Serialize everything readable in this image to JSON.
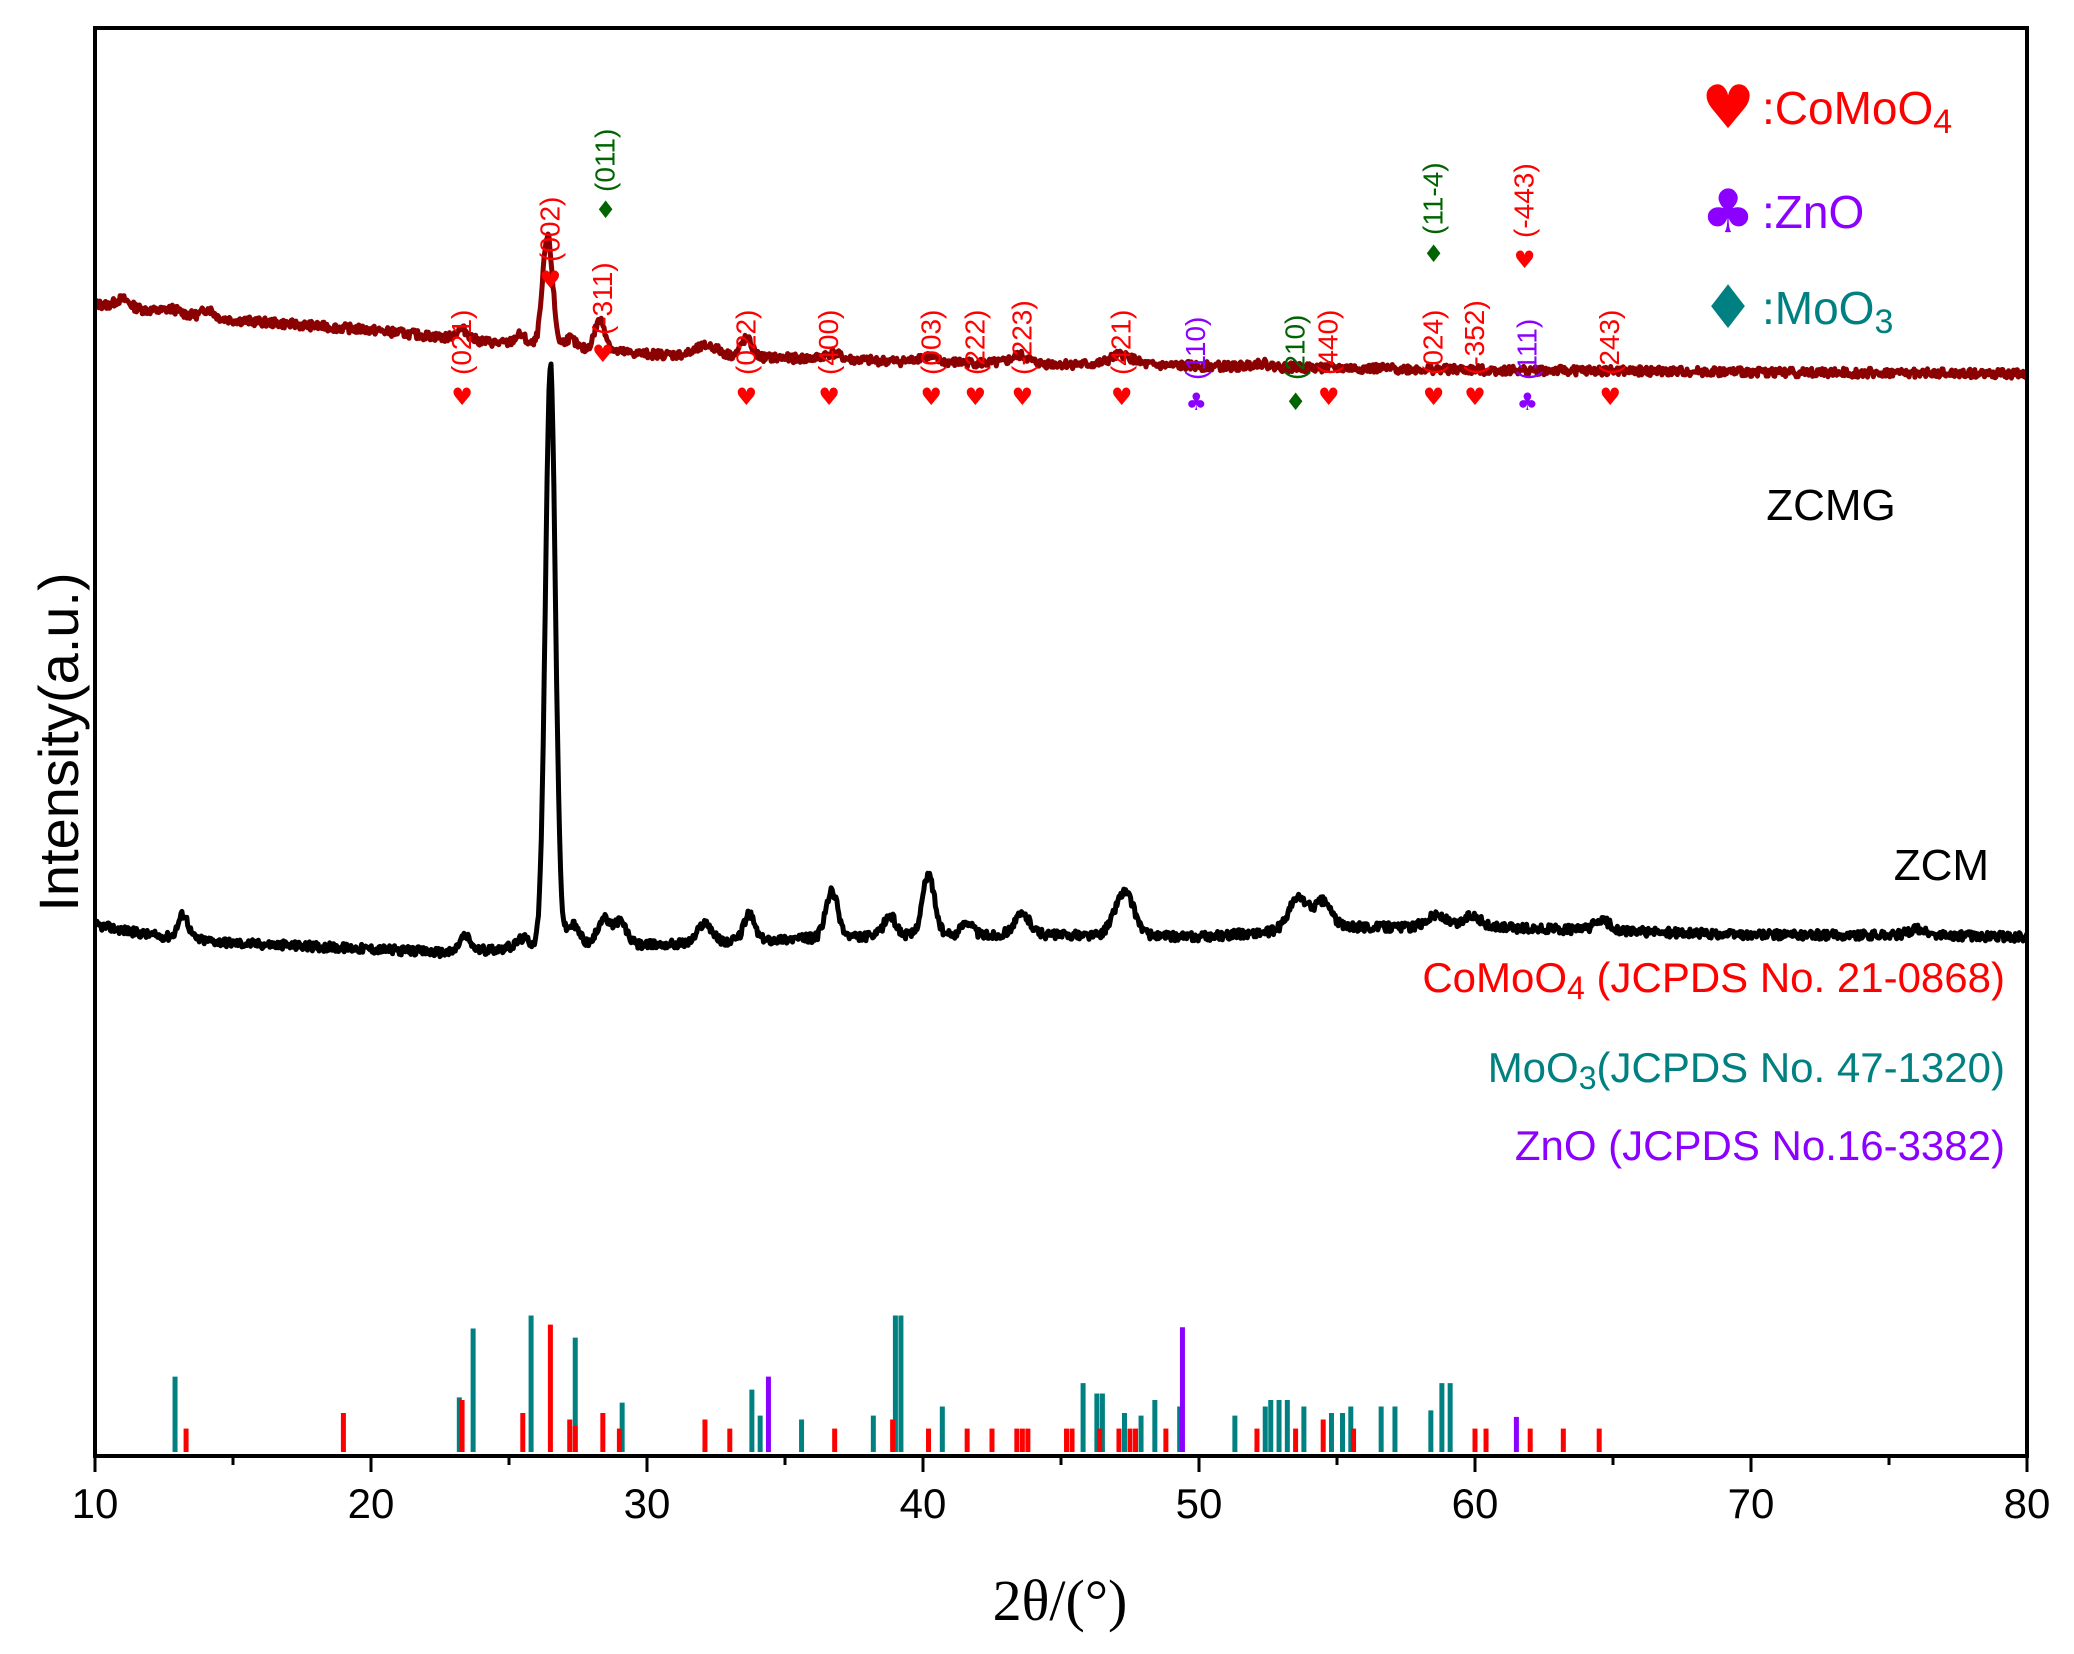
{
  "chart_data": {
    "type": "line",
    "xlabel": "2θ/(°)",
    "ylabel": "Intensity(a.u.)",
    "xlim": [
      10,
      80
    ],
    "xticks": [
      10,
      20,
      30,
      40,
      50,
      60,
      70,
      80
    ],
    "colors": {
      "comoo4": "#ff0000",
      "moo3": "#008080",
      "zno": "#8b00ff",
      "moo3_marker": "#006400",
      "zcmg": "#8b0000",
      "zcm": "#000000"
    },
    "legend": [
      {
        "symbol": "♥",
        "sep": ":",
        "text": "CoMoO",
        "sub": "4",
        "color": "#ff0000"
      },
      {
        "symbol": "♣",
        "sep": ":",
        "text": "ZnO",
        "sub": "",
        "color": "#8b00ff"
      },
      {
        "symbol": "♦",
        "sep": ":",
        "text": "MoO",
        "sub": "3",
        "color": "#008080"
      }
    ],
    "series": [
      {
        "name": "ZCMG",
        "color": "#8b0000",
        "baseline": [
          [
            10,
            0.68
          ],
          [
            15,
            0.6
          ],
          [
            20,
            0.55
          ],
          [
            25,
            0.48
          ],
          [
            30,
            0.43
          ],
          [
            40,
            0.39
          ],
          [
            50,
            0.37
          ],
          [
            60,
            0.35
          ],
          [
            80,
            0.33
          ]
        ],
        "peaks": [
          [
            11.0,
            0.04,
            0.25
          ],
          [
            12.8,
            0.02,
            0.25
          ],
          [
            14.1,
            0.04,
            0.2
          ],
          [
            23.3,
            0.05,
            0.22
          ],
          [
            25.4,
            0.05,
            0.2
          ],
          [
            26.4,
            0.55,
            0.18
          ],
          [
            27.2,
            0.05,
            0.2
          ],
          [
            28.3,
            0.15,
            0.2
          ],
          [
            32.2,
            0.05,
            0.4
          ],
          [
            33.6,
            0.09,
            0.2
          ],
          [
            36.7,
            0.03,
            0.3
          ],
          [
            40.1,
            0.03,
            0.3
          ],
          [
            43.5,
            0.04,
            0.3
          ],
          [
            47.2,
            0.05,
            0.4
          ],
          [
            52.2,
            0.02,
            0.3
          ]
        ]
      },
      {
        "name": "ZCM",
        "color": "#000000",
        "baseline": [
          [
            10,
            0.05
          ],
          [
            12,
            0.0
          ],
          [
            15,
            -0.04
          ],
          [
            20,
            -0.07
          ],
          [
            23,
            -0.09
          ],
          [
            26,
            -0.05
          ],
          [
            30,
            -0.05
          ],
          [
            35,
            -0.02
          ],
          [
            40,
            0.0
          ],
          [
            45,
            0.0
          ],
          [
            50,
            -0.01
          ],
          [
            55,
            0.04
          ],
          [
            60,
            0.04
          ],
          [
            65,
            0.02
          ],
          [
            70,
            0.0
          ],
          [
            75,
            0.0
          ],
          [
            80,
            -0.01
          ]
        ],
        "peaks": [
          [
            13.2,
            0.12,
            0.18
          ],
          [
            23.4,
            0.08,
            0.2
          ],
          [
            25.5,
            0.04,
            0.2
          ],
          [
            26.5,
            2.9,
            0.18
          ],
          [
            27.3,
            0.1,
            0.25
          ],
          [
            28.4,
            0.13,
            0.2
          ],
          [
            29.0,
            0.12,
            0.25
          ],
          [
            32.1,
            0.1,
            0.25
          ],
          [
            33.7,
            0.13,
            0.2
          ],
          [
            36.7,
            0.23,
            0.22
          ],
          [
            38.8,
            0.1,
            0.22
          ],
          [
            40.2,
            0.3,
            0.22
          ],
          [
            41.6,
            0.07,
            0.2
          ],
          [
            43.6,
            0.1,
            0.3
          ],
          [
            47.3,
            0.22,
            0.35
          ],
          [
            53.6,
            0.16,
            0.35
          ],
          [
            54.5,
            0.13,
            0.3
          ],
          [
            58.6,
            0.06,
            0.35
          ],
          [
            59.9,
            0.06,
            0.3
          ],
          [
            64.6,
            0.05,
            0.3
          ],
          [
            76.0,
            0.03,
            0.3
          ]
        ]
      }
    ],
    "sample_labels": [
      {
        "text": "ZCMG",
        "x": 70.0
      },
      {
        "text": "ZCM",
        "x": 74.0
      }
    ],
    "reference_labels": [
      {
        "main": "CoMoO",
        "sub": "4",
        "rest": " (JCPDS No. 21-0868)",
        "color": "#ff0000"
      },
      {
        "main": "MoO",
        "sub": "3",
        "rest": "(JCPDS No. 47-1320)",
        "color": "#008080"
      },
      {
        "main": "ZnO (JCPDS No.16-3382)",
        "sub": "",
        "rest": "",
        "color": "#8b00ff"
      }
    ],
    "reference_lines": {
      "comoo4": [
        [
          13.3,
          0.18
        ],
        [
          19.0,
          0.3
        ],
        [
          23.3,
          0.4
        ],
        [
          25.5,
          0.3
        ],
        [
          26.5,
          0.98
        ],
        [
          27.2,
          0.25
        ],
        [
          27.4,
          0.2
        ],
        [
          28.4,
          0.3
        ],
        [
          29.0,
          0.18
        ],
        [
          32.1,
          0.25
        ],
        [
          33.0,
          0.18
        ],
        [
          36.8,
          0.18
        ],
        [
          38.9,
          0.25
        ],
        [
          40.2,
          0.18
        ],
        [
          41.6,
          0.18
        ],
        [
          42.5,
          0.18
        ],
        [
          43.4,
          0.18
        ],
        [
          43.6,
          0.18
        ],
        [
          43.8,
          0.18
        ],
        [
          45.2,
          0.18
        ],
        [
          45.4,
          0.18
        ],
        [
          46.4,
          0.18
        ],
        [
          47.1,
          0.18
        ],
        [
          47.5,
          0.18
        ],
        [
          47.7,
          0.18
        ],
        [
          48.8,
          0.18
        ],
        [
          52.1,
          0.18
        ],
        [
          53.5,
          0.18
        ],
        [
          54.5,
          0.25
        ],
        [
          55.6,
          0.18
        ],
        [
          60.0,
          0.18
        ],
        [
          60.4,
          0.18
        ],
        [
          62.0,
          0.18
        ],
        [
          63.2,
          0.18
        ],
        [
          64.5,
          0.18
        ]
      ],
      "moo3": [
        [
          12.9,
          0.58
        ],
        [
          23.2,
          0.42
        ],
        [
          23.7,
          0.95
        ],
        [
          25.8,
          1.05
        ],
        [
          27.4,
          0.88
        ],
        [
          29.1,
          0.38
        ],
        [
          33.8,
          0.48
        ],
        [
          34.1,
          0.28
        ],
        [
          35.6,
          0.25
        ],
        [
          38.2,
          0.28
        ],
        [
          39.0,
          1.05
        ],
        [
          39.2,
          1.05
        ],
        [
          40.7,
          0.35
        ],
        [
          45.8,
          0.53
        ],
        [
          46.3,
          0.45
        ],
        [
          46.5,
          0.45
        ],
        [
          47.3,
          0.3
        ],
        [
          47.9,
          0.28
        ],
        [
          48.4,
          0.4
        ],
        [
          49.3,
          0.35
        ],
        [
          51.3,
          0.28
        ],
        [
          52.4,
          0.35
        ],
        [
          52.6,
          0.4
        ],
        [
          52.9,
          0.4
        ],
        [
          53.2,
          0.4
        ],
        [
          53.8,
          0.35
        ],
        [
          54.8,
          0.3
        ],
        [
          55.2,
          0.3
        ],
        [
          55.5,
          0.35
        ],
        [
          56.6,
          0.35
        ],
        [
          57.1,
          0.35
        ],
        [
          58.4,
          0.32
        ],
        [
          58.8,
          0.53
        ],
        [
          59.1,
          0.53
        ]
      ],
      "zno": [
        [
          34.4,
          0.58
        ],
        [
          49.4,
          0.96
        ],
        [
          61.5,
          0.27
        ]
      ]
    },
    "annotations": [
      {
        "hkl": "(021)",
        "x": 23.3,
        "marker": "♥",
        "color": "#ff0000"
      },
      {
        "hkl": "(002)",
        "x": 26.5,
        "marker": "♥",
        "color": "#ff0000"
      },
      {
        "hkl": "(-311)",
        "x": 28.4,
        "marker": "♥",
        "color": "#ff0000"
      },
      {
        "hkl": "(011)",
        "x": 28.5,
        "marker": "♦",
        "color": "#006400"
      },
      {
        "hkl": "(022)",
        "x": 33.6,
        "marker": "♥",
        "color": "#ff0000"
      },
      {
        "hkl": "(400)",
        "x": 36.6,
        "marker": "♥",
        "color": "#ff0000"
      },
      {
        "hkl": "(003)",
        "x": 40.3,
        "marker": "♥",
        "color": "#ff0000"
      },
      {
        "hkl": "(222)",
        "x": 41.9,
        "marker": "♥",
        "color": "#ff0000"
      },
      {
        "hkl": "(-223)",
        "x": 43.6,
        "marker": "♥",
        "color": "#ff0000"
      },
      {
        "hkl": "(421)",
        "x": 47.2,
        "marker": "♥",
        "color": "#ff0000"
      },
      {
        "hkl": "(110)",
        "x": 49.9,
        "marker": "♣",
        "color": "#8b00ff"
      },
      {
        "hkl": "(210)",
        "x": 53.5,
        "marker": "♦",
        "color": "#006400"
      },
      {
        "hkl": "(440)",
        "x": 54.7,
        "marker": "♥",
        "color": "#ff0000"
      },
      {
        "hkl": "(024)",
        "x": 58.5,
        "marker": "♥",
        "color": "#ff0000"
      },
      {
        "hkl": "(11-4)",
        "x": 58.5,
        "marker": "♦",
        "color": "#006400"
      },
      {
        "hkl": "(-352)",
        "x": 60.0,
        "marker": "♥",
        "color": "#ff0000"
      },
      {
        "hkl": "(-443)",
        "x": 61.8,
        "marker": "♥",
        "color": "#ff0000"
      },
      {
        "hkl": "(111)",
        "x": 61.9,
        "marker": "♣",
        "color": "#8b00ff"
      },
      {
        "hkl": "(243)",
        "x": 64.9,
        "marker": "♥",
        "color": "#ff0000"
      }
    ]
  }
}
